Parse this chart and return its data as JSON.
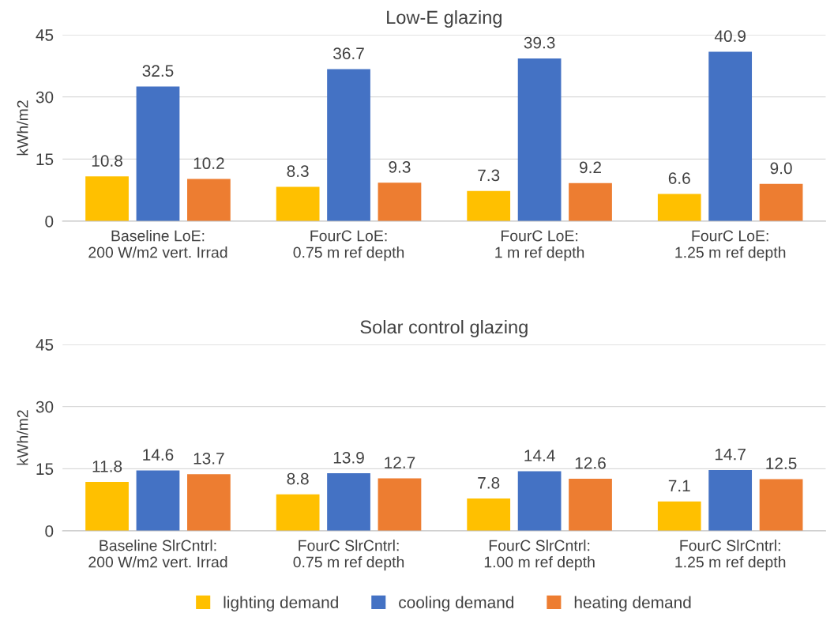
{
  "chart_data": [
    {
      "type": "bar",
      "title": "Low-E glazing",
      "ylabel": "kWh/m2",
      "categories": [
        "Baseline LoE:\n200 W/m2 vert. Irrad",
        "FourC LoE:\n0.75 m ref depth",
        "FourC LoE:\n1 m ref depth",
        "FourC LoE:\n1.25 m ref depth"
      ],
      "series": [
        {
          "color": "#ffc000",
          "values": [
            10.8,
            8.3,
            7.3,
            6.6
          ],
          "value_labels": [
            "10.8",
            "8.3",
            "7.3",
            "6.6"
          ]
        },
        {
          "color": "#4472c4",
          "values": [
            32.5,
            36.7,
            39.3,
            40.9
          ],
          "value_labels": [
            "32.5",
            "36.7",
            "39.3",
            "40.9"
          ]
        },
        {
          "color": "#ed7d31",
          "values": [
            10.2,
            9.3,
            9.2,
            9.0
          ],
          "value_labels": [
            "10.2",
            "9.3",
            "9.2",
            "9.0"
          ]
        }
      ],
      "ylim": [
        0,
        45
      ],
      "yticks": [
        0,
        15,
        30,
        45
      ],
      "grid": "y"
    },
    {
      "type": "bar",
      "title": "Solar control glazing",
      "ylabel": "kWh/m2",
      "categories": [
        "Baseline SlrCntrl:\n200 W/m2 vert. Irrad",
        "FourC SlrCntrl:\n0.75 m ref depth",
        "FourC SlrCntrl:\n1.00 m ref depth",
        "FourC SlrCntrl:\n1.25 m ref depth"
      ],
      "series": [
        {
          "name": "lighting demand",
          "color": "#ffc000",
          "values": [
            11.8,
            8.8,
            7.8,
            7.1
          ],
          "value_labels": [
            "11.8",
            "8.8",
            "7.8",
            "7.1"
          ]
        },
        {
          "name": "cooling demand",
          "color": "#4472c4",
          "values": [
            14.6,
            13.9,
            14.4,
            14.7
          ],
          "value_labels": [
            "14.6",
            "13.9",
            "14.4",
            "14.7"
          ]
        },
        {
          "name": "heating demand",
          "color": "#ed7d31",
          "values": [
            13.7,
            12.7,
            12.6,
            12.5
          ],
          "value_labels": [
            "13.7",
            "12.7",
            "12.6",
            "12.5"
          ]
        }
      ],
      "ylim": [
        0,
        45
      ],
      "yticks": [
        0,
        15,
        30,
        45
      ],
      "grid": "y",
      "legend": "bottom"
    }
  ]
}
